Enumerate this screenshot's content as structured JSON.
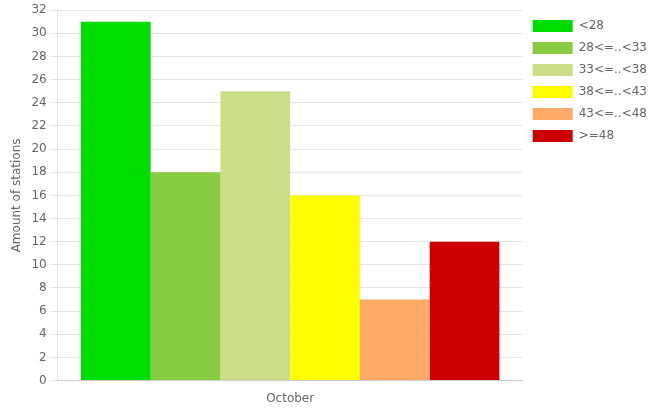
{
  "chart_data": {
    "type": "bar",
    "categories": [
      "October"
    ],
    "series": [
      {
        "name": "<28",
        "color": "#00dd00",
        "values": [
          31
        ]
      },
      {
        "name": "28<=..<33",
        "color": "#88cc44",
        "values": [
          18
        ]
      },
      {
        "name": "33<=..<38",
        "color": "#ccdd88",
        "values": [
          25
        ]
      },
      {
        "name": "38<=..<43",
        "color": "#ffff00",
        "values": [
          16
        ]
      },
      {
        "name": "43<=..<48",
        "color": "#ffaa66",
        "values": [
          7
        ]
      },
      {
        "name": ">=48",
        "color": "#cc0000",
        "values": [
          12
        ]
      }
    ],
    "ylabel": "Amount of stations",
    "ylim": [
      0,
      32
    ],
    "yticks": [
      0,
      2,
      4,
      6,
      8,
      10,
      12,
      14,
      16,
      18,
      20,
      22,
      24,
      26,
      28,
      30,
      32
    ],
    "grid": true,
    "legend": "upper right"
  }
}
